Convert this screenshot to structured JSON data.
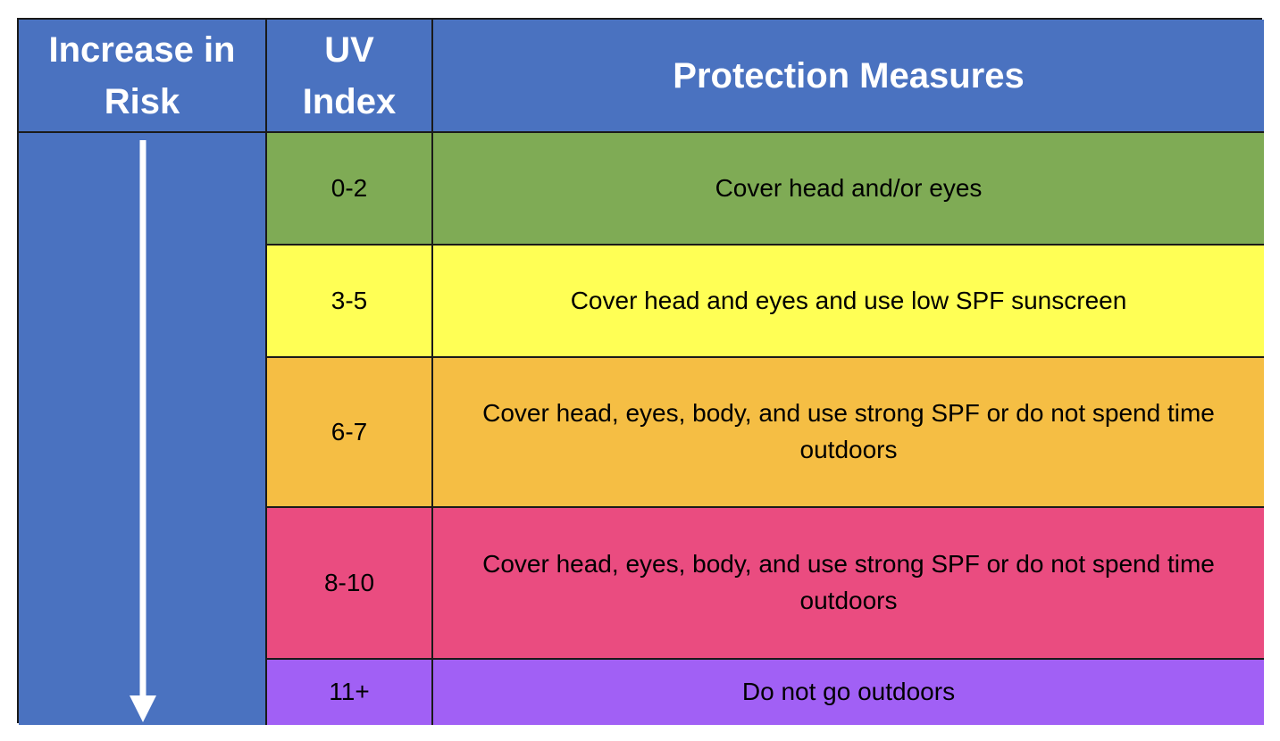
{
  "table": {
    "header": [
      "Increase in Risk",
      "UV Index",
      "Protection Measures"
    ],
    "rows": [
      [
        "0-2",
        "Cover head and/or eyes"
      ],
      [
        "3-5",
        "Cover head and eyes and use low SPF sunscreen"
      ],
      [
        "6-7",
        "Cover head, eyes, body, and use strong SPF or do not spend time outdoors"
      ],
      [
        "8-10",
        "Cover head, eyes, body, and use strong SPF or do not spend time outdoors"
      ],
      [
        "11+",
        "Do not go outdoors"
      ]
    ]
  }
}
